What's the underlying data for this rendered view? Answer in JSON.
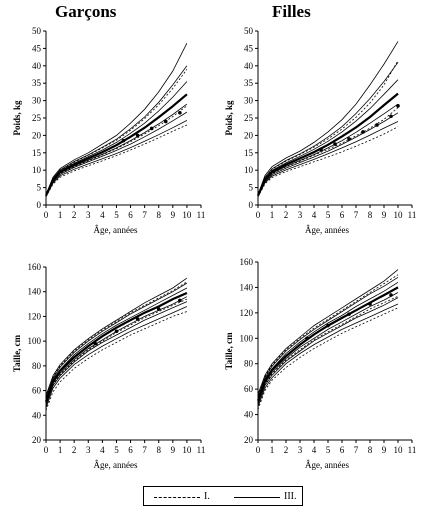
{
  "panel_titles": {
    "boys": "Garçons",
    "girls": "Filles"
  },
  "legend": {
    "dashed": "I.",
    "solid": "III."
  },
  "chart_data": [
    {
      "type": "line",
      "id": "boys-weight",
      "title": "Garçons",
      "xlabel": "Âge, années",
      "ylabel": "Poids, kg",
      "xlim": [
        0,
        11
      ],
      "ylim": [
        0,
        50
      ],
      "xticks": [
        0,
        1,
        2,
        3,
        4,
        5,
        6,
        7,
        8,
        9,
        10,
        11
      ],
      "yticks": [
        0,
        5,
        10,
        15,
        20,
        25,
        30,
        35,
        40,
        45,
        50
      ],
      "x": [
        0,
        0.5,
        1,
        2,
        3,
        4,
        5,
        6,
        7,
        8,
        9,
        10
      ],
      "series": [
        {
          "style": "solid",
          "values": [
            3.0,
            8.0,
            10.5,
            13.0,
            15.0,
            17.5,
            20.0,
            23.5,
            27.5,
            32.5,
            38.5,
            46.5
          ]
        },
        {
          "style": "solid",
          "values": [
            2.9,
            7.6,
            10.1,
            12.5,
            14.4,
            16.6,
            18.9,
            21.9,
            25.3,
            29.5,
            34.5,
            40.0
          ]
        },
        {
          "style": "solid",
          "values": [
            2.8,
            7.4,
            9.8,
            12.0,
            13.9,
            15.8,
            18.0,
            20.6,
            23.5,
            27.0,
            31.0,
            35.5
          ]
        },
        {
          "style": "solid",
          "values": [
            2.7,
            7.1,
            9.5,
            11.6,
            13.4,
            15.2,
            17.2,
            19.5,
            22.1,
            25.0,
            28.2,
            31.8
          ]
        },
        {
          "style": "solid",
          "values": [
            2.6,
            6.9,
            9.2,
            11.2,
            12.9,
            14.6,
            16.4,
            18.5,
            20.8,
            23.3,
            26.0,
            29.0
          ]
        },
        {
          "style": "solid",
          "values": [
            2.5,
            6.6,
            8.8,
            10.8,
            12.4,
            14.0,
            15.7,
            17.5,
            19.6,
            21.8,
            24.2,
            26.7
          ]
        },
        {
          "style": "solid",
          "values": [
            2.4,
            6.3,
            8.4,
            10.3,
            11.8,
            13.3,
            14.8,
            16.5,
            18.3,
            20.2,
            22.2,
            24.3
          ]
        },
        {
          "style": "dashed",
          "values": [
            2.9,
            7.5,
            10.0,
            12.3,
            14.3,
            16.4,
            18.6,
            21.5,
            24.8,
            28.8,
            33.5,
            39.0
          ]
        },
        {
          "style": "dashed",
          "values": [
            2.6,
            6.8,
            9.0,
            11.0,
            12.7,
            14.4,
            16.2,
            18.2,
            20.4,
            22.8,
            25.4,
            28.5
          ]
        },
        {
          "style": "dashed",
          "values": [
            2.3,
            6.0,
            8.0,
            9.8,
            11.3,
            12.7,
            14.2,
            15.8,
            17.5,
            19.3,
            21.2,
            23.0
          ]
        },
        {
          "style": "bold",
          "values": [
            2.7,
            7.1,
            9.5,
            11.6,
            13.4,
            15.2,
            17.2,
            19.6,
            22.2,
            25.2,
            28.4,
            31.8
          ]
        }
      ],
      "points": {
        "x": [
          5.5,
          6.5,
          7.5,
          8.5,
          9.5
        ],
        "y": [
          18.5,
          20.0,
          22.0,
          24.0,
          26.5
        ]
      }
    },
    {
      "type": "line",
      "id": "girls-weight",
      "title": "Filles",
      "xlabel": "Âge, années",
      "ylabel": "Poids, kg",
      "xlim": [
        0,
        11
      ],
      "ylim": [
        0,
        50
      ],
      "xticks": [
        0,
        1,
        2,
        3,
        4,
        5,
        6,
        7,
        8,
        9,
        10,
        11
      ],
      "yticks": [
        0,
        5,
        10,
        15,
        20,
        25,
        30,
        35,
        40,
        45,
        50
      ],
      "x": [
        0,
        0.5,
        1,
        2,
        3,
        4,
        5,
        6,
        7,
        8,
        9,
        10
      ],
      "series": [
        {
          "style": "solid",
          "values": [
            3.0,
            8.5,
            11.0,
            13.5,
            15.5,
            18.0,
            21.0,
            24.5,
            29.0,
            34.5,
            40.5,
            47.0
          ]
        },
        {
          "style": "solid",
          "values": [
            2.9,
            8.0,
            10.4,
            12.8,
            14.7,
            16.9,
            19.5,
            22.5,
            26.3,
            30.6,
            35.5,
            41.0
          ]
        },
        {
          "style": "solid",
          "values": [
            2.8,
            7.6,
            9.9,
            12.1,
            14.0,
            16.0,
            18.3,
            21.0,
            24.1,
            27.7,
            31.8,
            36.0
          ]
        },
        {
          "style": "solid",
          "values": [
            2.7,
            7.3,
            9.5,
            11.6,
            13.4,
            15.2,
            17.3,
            19.7,
            22.4,
            25.4,
            28.7,
            32.0
          ]
        },
        {
          "style": "solid",
          "values": [
            2.6,
            7.0,
            9.1,
            11.1,
            12.8,
            14.5,
            16.4,
            18.5,
            20.9,
            23.5,
            26.2,
            29.0
          ]
        },
        {
          "style": "solid",
          "values": [
            2.5,
            6.7,
            8.7,
            10.6,
            12.2,
            13.8,
            15.5,
            17.4,
            19.5,
            21.7,
            24.0,
            26.5
          ]
        },
        {
          "style": "solid",
          "values": [
            2.4,
            6.4,
            8.3,
            10.1,
            11.6,
            13.1,
            14.7,
            16.4,
            18.2,
            20.1,
            22.1,
            24.0
          ]
        },
        {
          "style": "dashed",
          "values": [
            2.9,
            7.9,
            10.3,
            12.6,
            14.5,
            16.6,
            19.0,
            21.8,
            25.2,
            29.3,
            34.5,
            41.5
          ]
        },
        {
          "style": "dashed",
          "values": [
            2.6,
            6.9,
            9.0,
            11.0,
            12.6,
            14.3,
            16.0,
            17.8,
            19.9,
            22.1,
            24.6,
            28.0
          ]
        },
        {
          "style": "dashed",
          "values": [
            2.3,
            6.1,
            7.9,
            9.6,
            11.0,
            12.4,
            13.8,
            15.3,
            16.9,
            18.6,
            20.4,
            22.5
          ]
        },
        {
          "style": "bold",
          "values": [
            2.7,
            7.3,
            9.5,
            11.6,
            13.4,
            15.2,
            17.3,
            19.7,
            22.3,
            25.3,
            28.7,
            32.0
          ]
        }
      ],
      "points": {
        "x": [
          4.5,
          5.5,
          6.5,
          7.5,
          8.5,
          9.5,
          10.0
        ],
        "y": [
          16.0,
          17.5,
          19.0,
          21.0,
          23.0,
          25.5,
          28.5
        ]
      }
    },
    {
      "type": "line",
      "id": "boys-height",
      "title": "",
      "xlabel": "Âge, années",
      "ylabel": "Taille, cm",
      "xlim": [
        0,
        11
      ],
      "ylim": [
        20,
        160
      ],
      "xticks": [
        0,
        1,
        2,
        3,
        4,
        5,
        6,
        7,
        8,
        9,
        10,
        11
      ],
      "yticks": [
        20,
        40,
        60,
        80,
        100,
        120,
        140,
        160
      ],
      "x": [
        0,
        0.5,
        1,
        2,
        3,
        4,
        5,
        6,
        7,
        8,
        9,
        10
      ],
      "series": [
        {
          "style": "solid",
          "values": [
            56,
            72,
            81,
            93,
            102,
            110,
            117,
            124,
            131,
            137,
            143,
            151
          ]
        },
        {
          "style": "solid",
          "values": [
            54,
            70,
            79,
            91,
            100,
            108,
            115,
            122,
            128,
            134,
            140,
            147
          ]
        },
        {
          "style": "solid",
          "values": [
            52,
            69,
            77,
            89,
            98,
            106,
            113,
            119,
            125,
            131,
            137,
            143
          ]
        },
        {
          "style": "solid",
          "values": [
            51,
            67,
            76,
            87,
            96,
            104,
            111,
            117,
            123,
            128,
            134,
            139
          ]
        },
        {
          "style": "solid",
          "values": [
            50,
            66,
            74,
            85,
            94,
            101,
            108,
            114,
            120,
            125,
            130,
            136
          ]
        },
        {
          "style": "solid",
          "values": [
            48,
            64,
            72,
            83,
            92,
            99,
            105,
            111,
            117,
            122,
            127,
            132
          ]
        },
        {
          "style": "solid",
          "values": [
            46,
            62,
            70,
            81,
            89,
            96,
            102,
            108,
            113,
            118,
            123,
            128
          ]
        },
        {
          "style": "dashed",
          "values": [
            55,
            71,
            80,
            92,
            101,
            109,
            116,
            123,
            129,
            135,
            141,
            148
          ]
        },
        {
          "style": "dashed",
          "values": [
            49,
            65,
            73,
            84,
            93,
            100,
            107,
            113,
            119,
            124,
            129,
            134
          ]
        },
        {
          "style": "dashed",
          "values": [
            44,
            59,
            67,
            78,
            86,
            93,
            99,
            105,
            110,
            115,
            120,
            124
          ]
        },
        {
          "style": "bold",
          "values": [
            51,
            67,
            76,
            87,
            96,
            104,
            111,
            117,
            123,
            128,
            134,
            139
          ]
        }
      ],
      "points": {
        "x": [
          3.5,
          5.0,
          6.5,
          8.0,
          9.5
        ],
        "y": [
          98,
          108,
          118,
          126,
          133
        ]
      }
    },
    {
      "type": "line",
      "id": "girls-height",
      "title": "",
      "xlabel": "Âge, années",
      "ylabel": "Taille, cm",
      "xlim": [
        0,
        11
      ],
      "ylim": [
        20,
        160
      ],
      "xticks": [
        0,
        1,
        2,
        3,
        4,
        5,
        6,
        7,
        8,
        9,
        10,
        11
      ],
      "yticks": [
        20,
        40,
        60,
        80,
        100,
        120,
        140,
        160
      ],
      "x": [
        0,
        0.5,
        1,
        2,
        3,
        4,
        5,
        6,
        7,
        8,
        9,
        10
      ],
      "series": [
        {
          "style": "solid",
          "values": [
            56,
            71,
            80,
            92,
            101,
            110,
            117,
            124,
            131,
            138,
            145,
            154
          ]
        },
        {
          "style": "solid",
          "values": [
            54,
            69,
            78,
            90,
            99,
            107,
            114,
            121,
            128,
            135,
            141,
            148
          ]
        },
        {
          "style": "solid",
          "values": [
            52,
            68,
            76,
            88,
            97,
            105,
            112,
            118,
            125,
            131,
            137,
            144
          ]
        },
        {
          "style": "solid",
          "values": [
            51,
            66,
            75,
            86,
            95,
            103,
            110,
            116,
            122,
            128,
            134,
            140
          ]
        },
        {
          "style": "solid",
          "values": [
            49,
            65,
            73,
            84,
            93,
            100,
            107,
            113,
            119,
            125,
            130,
            136
          ]
        },
        {
          "style": "solid",
          "values": [
            48,
            63,
            71,
            82,
            90,
            98,
            104,
            110,
            116,
            121,
            126,
            132
          ]
        },
        {
          "style": "solid",
          "values": [
            46,
            61,
            69,
            80,
            88,
            95,
            101,
            107,
            112,
            117,
            122,
            127
          ]
        },
        {
          "style": "dashed",
          "values": [
            55,
            70,
            79,
            91,
            100,
            108,
            115,
            122,
            129,
            136,
            143,
            150
          ]
        },
        {
          "style": "dashed",
          "values": [
            48,
            64,
            72,
            83,
            91,
            99,
            105,
            111,
            117,
            123,
            128,
            133
          ]
        },
        {
          "style": "dashed",
          "values": [
            44,
            59,
            67,
            77,
            85,
            92,
            98,
            104,
            109,
            114,
            119,
            124
          ]
        },
        {
          "style": "bold",
          "values": [
            51,
            66,
            75,
            86,
            95,
            103,
            110,
            116,
            122,
            128,
            134,
            140
          ]
        }
      ],
      "points": {
        "x": [
          3.5,
          5.0,
          6.5,
          8.0,
          9.5
        ],
        "y": [
          100,
          110,
          119,
          127,
          134
        ]
      }
    }
  ]
}
